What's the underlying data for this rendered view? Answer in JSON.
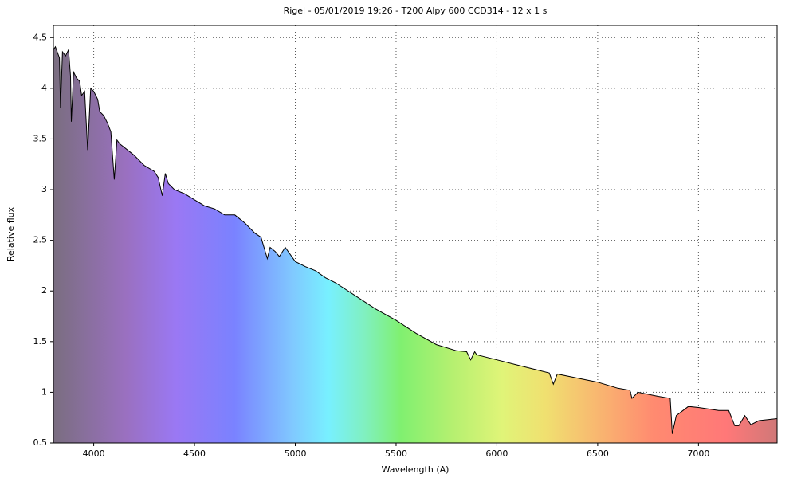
{
  "chart_data": {
    "type": "area",
    "title": "Rigel - 05/01/2019 19:26 - T200 Alpy 600 CCD314 - 12 x 1 s",
    "x_label": "Wavelength (A)",
    "y_label": "Relative flux",
    "x": [
      3800,
      3810,
      3830,
      3835,
      3845,
      3860,
      3875,
      3885,
      3889,
      3900,
      3915,
      3930,
      3940,
      3955,
      3970,
      3985,
      4000,
      4020,
      4030,
      4050,
      4070,
      4085,
      4102,
      4115,
      4130,
      4150,
      4200,
      4250,
      4300,
      4320,
      4340,
      4355,
      4370,
      4400,
      4450,
      4500,
      4550,
      4600,
      4650,
      4700,
      4750,
      4800,
      4830,
      4861,
      4875,
      4900,
      4921,
      4950,
      5000,
      5050,
      5100,
      5150,
      5200,
      5300,
      5400,
      5500,
      5600,
      5700,
      5800,
      5850,
      5870,
      5890,
      5900,
      6000,
      6100,
      6200,
      6260,
      6280,
      6300,
      6400,
      6500,
      6600,
      6660,
      6670,
      6700,
      6800,
      6860,
      6870,
      6890,
      6950,
      7000,
      7100,
      7150,
      7180,
      7200,
      7230,
      7260,
      7300,
      7390
    ],
    "values": [
      4.38,
      4.41,
      4.3,
      3.81,
      4.36,
      4.32,
      4.38,
      4.12,
      3.67,
      4.16,
      4.1,
      4.07,
      3.93,
      3.97,
      3.39,
      4.0,
      3.97,
      3.89,
      3.77,
      3.73,
      3.65,
      3.57,
      3.1,
      3.49,
      3.45,
      3.42,
      3.34,
      3.24,
      3.18,
      3.12,
      2.94,
      3.16,
      3.06,
      3.0,
      2.96,
      2.9,
      2.84,
      2.81,
      2.75,
      2.75,
      2.67,
      2.57,
      2.53,
      2.32,
      2.43,
      2.39,
      2.34,
      2.43,
      2.29,
      2.24,
      2.2,
      2.13,
      2.08,
      1.95,
      1.82,
      1.71,
      1.58,
      1.47,
      1.41,
      1.4,
      1.32,
      1.4,
      1.37,
      1.32,
      1.27,
      1.22,
      1.19,
      1.08,
      1.18,
      1.14,
      1.1,
      1.04,
      1.02,
      0.94,
      1.0,
      0.96,
      0.94,
      0.59,
      0.77,
      0.86,
      0.85,
      0.82,
      0.82,
      0.67,
      0.67,
      0.77,
      0.68,
      0.72,
      0.74
    ],
    "color": "#000000",
    "xlim": [
      3800,
      7390
    ],
    "ylim": [
      0.5,
      4.62
    ],
    "xticks": [
      4000,
      4500,
      5000,
      5500,
      6000,
      6500,
      7000
    ],
    "yticks": [
      0.5,
      1,
      1.5,
      2,
      2.5,
      3,
      3.5,
      4,
      4.5
    ],
    "grid": true
  }
}
